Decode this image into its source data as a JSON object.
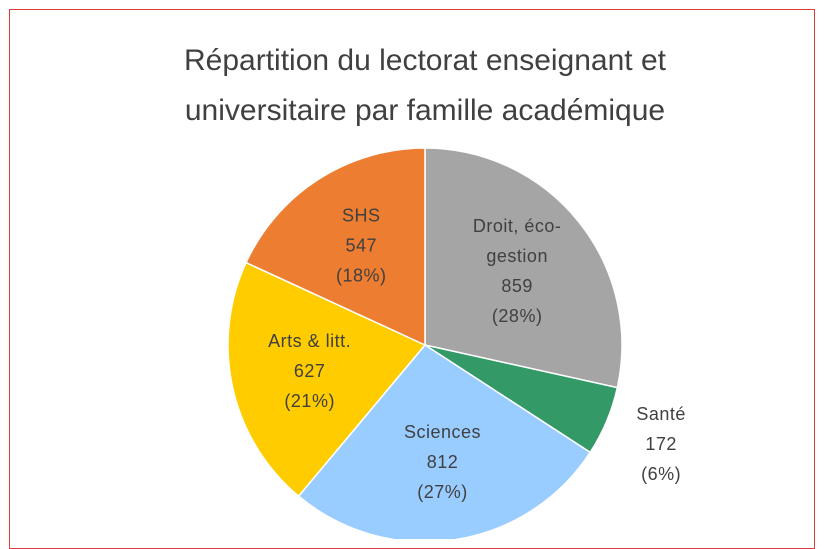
{
  "chart_data": {
    "type": "pie",
    "title": "Répartition du lectorat enseignant et universitaire par famille académique",
    "categories": [
      "Droit, éco-gestion",
      "Santé",
      "Sciences",
      "Arts & litt.",
      "SHS"
    ],
    "values": [
      859,
      172,
      812,
      627,
      547
    ],
    "percent_labels": [
      "(28%)",
      "(6%)",
      "(27%)",
      "(21%)",
      "(18%)"
    ],
    "colors": [
      "#a5a5a5",
      "#339966",
      "#99ccff",
      "#ffcc00",
      "#ed7d31"
    ]
  }
}
